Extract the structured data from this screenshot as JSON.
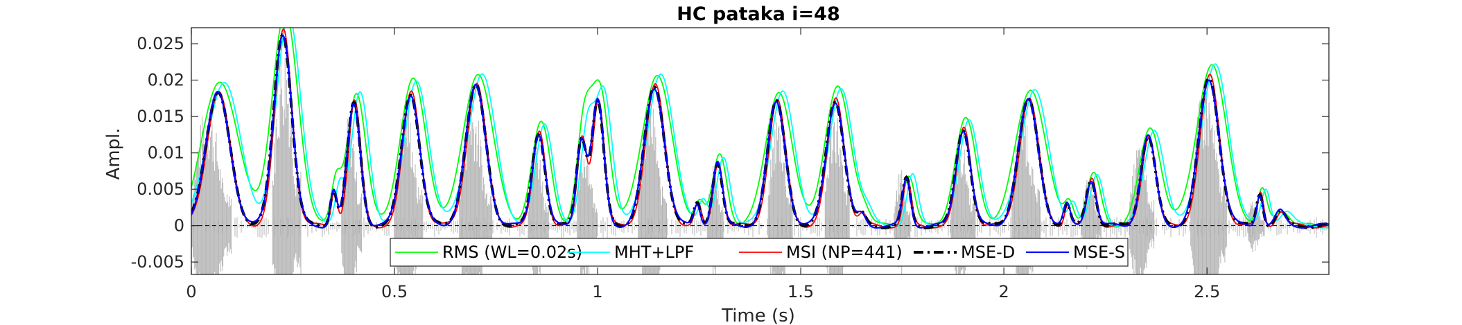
{
  "chart_data": {
    "type": "line",
    "title": "HC pataka i=48",
    "xlabel": "Time (s)",
    "ylabel": "Ampl.",
    "xlim": [
      0,
      2.8
    ],
    "ylim": [
      -0.0067,
      0.0272
    ],
    "grid": false,
    "legend_position": "bottom-center",
    "x_ticks": [
      0,
      0.5,
      1,
      1.5,
      2,
      2.5
    ],
    "x_tick_labels": [
      "0",
      "0.5",
      "1",
      "1.5",
      "2",
      "2.5"
    ],
    "y_ticks": [
      -0.005,
      0,
      0.005,
      0.01,
      0.015,
      0.02,
      0.025
    ],
    "y_tick_labels": [
      "-0.005",
      "0",
      "0.005",
      "0.01",
      "0.015",
      "0.02",
      "0.025"
    ],
    "waveform": {
      "color": "#b4b4b4",
      "bursts": [
        {
          "start": 0.0,
          "end": 0.1,
          "amplitude": 0.017
        },
        {
          "start": 0.2,
          "end": 0.27,
          "amplitude": 0.026
        },
        {
          "start": 0.37,
          "end": 0.42,
          "amplitude": 0.016
        },
        {
          "start": 0.5,
          "end": 0.57,
          "amplitude": 0.018
        },
        {
          "start": 0.66,
          "end": 0.74,
          "amplitude": 0.018
        },
        {
          "start": 0.83,
          "end": 0.88,
          "amplitude": 0.012
        },
        {
          "start": 0.95,
          "end": 1.0,
          "amplitude": 0.012
        },
        {
          "start": 1.1,
          "end": 1.17,
          "amplitude": 0.018
        },
        {
          "start": 1.27,
          "end": 1.31,
          "amplitude": 0.009
        },
        {
          "start": 1.42,
          "end": 1.48,
          "amplitude": 0.016
        },
        {
          "start": 1.56,
          "end": 1.62,
          "amplitude": 0.017
        },
        {
          "start": 1.73,
          "end": 1.77,
          "amplitude": 0.008
        },
        {
          "start": 1.87,
          "end": 1.93,
          "amplitude": 0.012
        },
        {
          "start": 2.02,
          "end": 2.09,
          "amplitude": 0.017
        },
        {
          "start": 2.19,
          "end": 2.24,
          "amplitude": 0.007
        },
        {
          "start": 2.31,
          "end": 2.37,
          "amplitude": 0.012
        },
        {
          "start": 2.46,
          "end": 2.55,
          "amplitude": 0.02
        },
        {
          "start": 2.6,
          "end": 2.64,
          "amplitude": 0.004
        }
      ]
    },
    "peaks": [
      {
        "t": 0.065,
        "h": 0.0185,
        "w": 0.03
      },
      {
        "t": 0.225,
        "h": 0.027,
        "w": 0.022
      },
      {
        "t": 0.35,
        "h": 0.005,
        "w": 0.008
      },
      {
        "t": 0.4,
        "h": 0.017,
        "w": 0.016
      },
      {
        "t": 0.54,
        "h": 0.0185,
        "w": 0.022
      },
      {
        "t": 0.7,
        "h": 0.0195,
        "w": 0.025
      },
      {
        "t": 0.855,
        "h": 0.013,
        "w": 0.016
      },
      {
        "t": 0.96,
        "h": 0.012,
        "w": 0.012
      },
      {
        "t": 1.0,
        "h": 0.0175,
        "w": 0.015
      },
      {
        "t": 1.14,
        "h": 0.0192,
        "w": 0.025
      },
      {
        "t": 1.245,
        "h": 0.003,
        "w": 0.008
      },
      {
        "t": 1.295,
        "h": 0.009,
        "w": 0.012
      },
      {
        "t": 1.44,
        "h": 0.0172,
        "w": 0.022
      },
      {
        "t": 1.585,
        "h": 0.0175,
        "w": 0.022
      },
      {
        "t": 1.65,
        "h": 0.0015,
        "w": 0.01
      },
      {
        "t": 1.76,
        "h": 0.0065,
        "w": 0.01
      },
      {
        "t": 1.9,
        "h": 0.0135,
        "w": 0.018
      },
      {
        "t": 2.06,
        "h": 0.0175,
        "w": 0.025
      },
      {
        "t": 2.155,
        "h": 0.003,
        "w": 0.008
      },
      {
        "t": 2.215,
        "h": 0.0065,
        "w": 0.012
      },
      {
        "t": 2.355,
        "h": 0.0125,
        "w": 0.018
      },
      {
        "t": 2.505,
        "h": 0.0205,
        "w": 0.025
      },
      {
        "t": 2.63,
        "h": 0.0045,
        "w": 0.008
      },
      {
        "t": 2.68,
        "h": 0.002,
        "w": 0.012
      }
    ],
    "series": [
      {
        "name": "RMS (WL=0.02s)",
        "color": "#00ff00",
        "dash": "solid",
        "width": 1.8,
        "shift": 0.006,
        "gain": 1.08,
        "spread": 1.45
      },
      {
        "name": "MHT+LPF",
        "color": "#00ffff",
        "dash": "solid",
        "width": 1.8,
        "shift": 0.015,
        "gain": 1.07,
        "spread": 1.35
      },
      {
        "name": "MSI (NP=441)",
        "color": "#ff0000",
        "dash": "solid",
        "width": 1.8,
        "shift": 0.002,
        "gain": 1.0,
        "spread": 0.95
      },
      {
        "name": "MSE-D",
        "color": "#000000",
        "dash": "dashdot",
        "width": 4.0,
        "shift": 0.0,
        "gain": 0.98,
        "spread": 1.0
      },
      {
        "name": "MSE-S",
        "color": "#0000ff",
        "dash": "solid",
        "width": 2.2,
        "shift": 0.0,
        "gain": 0.98,
        "spread": 1.0
      }
    ]
  }
}
